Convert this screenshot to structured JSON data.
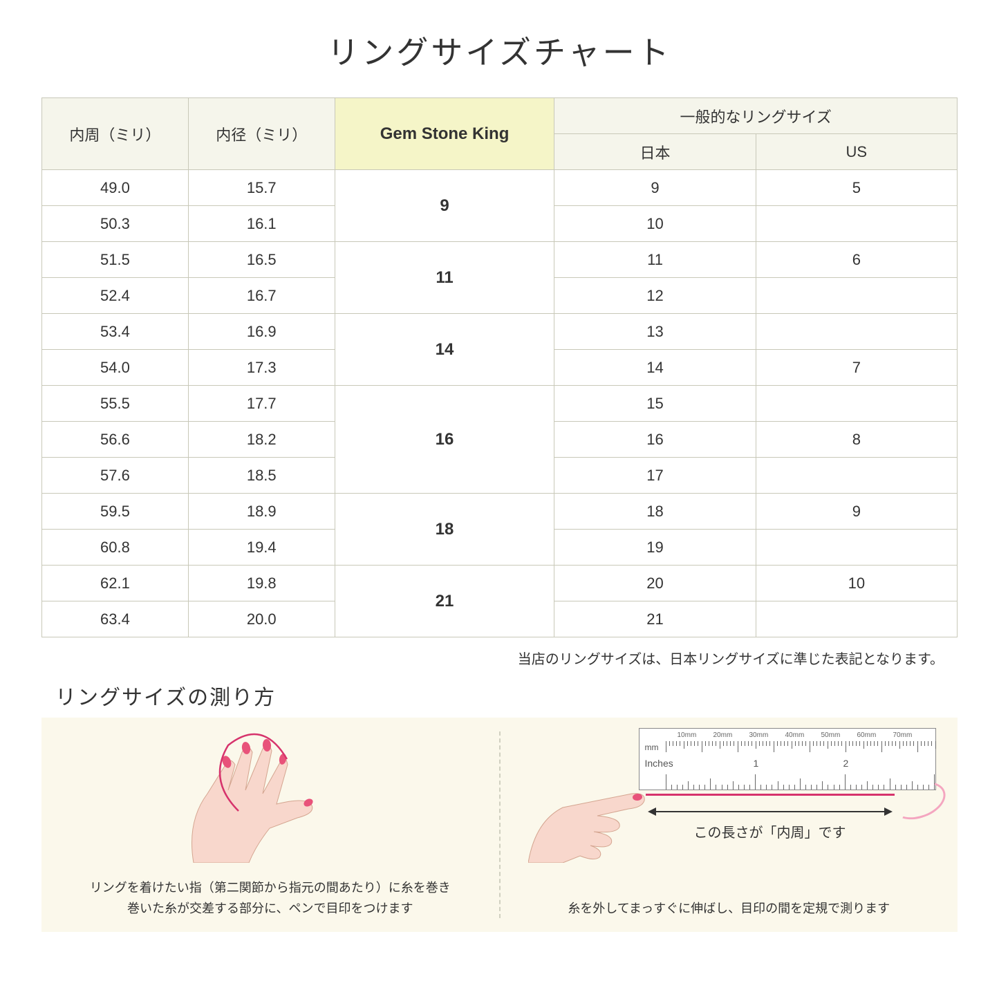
{
  "title": "リングサイズチャート",
  "headers": {
    "circumference": "内周（ミリ）",
    "diameter": "内径（ミリ）",
    "gsk": "Gem Stone King",
    "general": "一般的なリングサイズ",
    "japan": "日本",
    "us": "US"
  },
  "groups": [
    {
      "gsk": "9",
      "rows": [
        {
          "c": "49.0",
          "d": "15.7",
          "jp": "9",
          "us": "5"
        },
        {
          "c": "50.3",
          "d": "16.1",
          "jp": "10",
          "us": ""
        }
      ]
    },
    {
      "gsk": "11",
      "rows": [
        {
          "c": "51.5",
          "d": "16.5",
          "jp": "11",
          "us": "6"
        },
        {
          "c": "52.4",
          "d": "16.7",
          "jp": "12",
          "us": ""
        }
      ]
    },
    {
      "gsk": "14",
      "rows": [
        {
          "c": "53.4",
          "d": "16.9",
          "jp": "13",
          "us": ""
        },
        {
          "c": "54.0",
          "d": "17.3",
          "jp": "14",
          "us": "7"
        }
      ]
    },
    {
      "gsk": "16",
      "rows": [
        {
          "c": "55.5",
          "d": "17.7",
          "jp": "15",
          "us": ""
        },
        {
          "c": "56.6",
          "d": "18.2",
          "jp": "16",
          "us": "8"
        },
        {
          "c": "57.6",
          "d": "18.5",
          "jp": "17",
          "us": ""
        }
      ]
    },
    {
      "gsk": "18",
      "rows": [
        {
          "c": "59.5",
          "d": "18.9",
          "jp": "18",
          "us": "9"
        },
        {
          "c": "60.8",
          "d": "19.4",
          "jp": "19",
          "us": ""
        }
      ]
    },
    {
      "gsk": "21",
      "rows": [
        {
          "c": "62.1",
          "d": "19.8",
          "jp": "20",
          "us": "10"
        },
        {
          "c": "63.4",
          "d": "20.0",
          "jp": "21",
          "us": ""
        }
      ]
    }
  ],
  "note": "当店のリングサイズは、日本リングサイズに準じた表記となります。",
  "measure_title": "リングサイズの測り方",
  "caption_left_l1": "リングを着けたい指（第二関節から指元の間あたり）に糸を巻き",
  "caption_left_l2": "巻いた糸が交差する部分に、ペンで目印をつけます",
  "arrow_label": "この長さが「内周」です",
  "caption_right": "糸を外してまっすぐに伸ばし、目印の間を定規で測ります",
  "ruler": {
    "mm_marks": [
      "10mm",
      "20mm",
      "30mm",
      "40mm",
      "50mm",
      "60mm",
      "70mm"
    ],
    "mm_unit": "mm",
    "in_unit": "Inches",
    "in_marks": [
      "1",
      "2"
    ]
  },
  "colors": {
    "header_bg": "#f5f5eb",
    "gsk_bg": "#f5f5c8",
    "border": "#c8c8b8",
    "measure_bg": "#fbf8eb",
    "thread": "#d6336c",
    "skin": "#f8d7cc",
    "nail": "#e8527a"
  }
}
